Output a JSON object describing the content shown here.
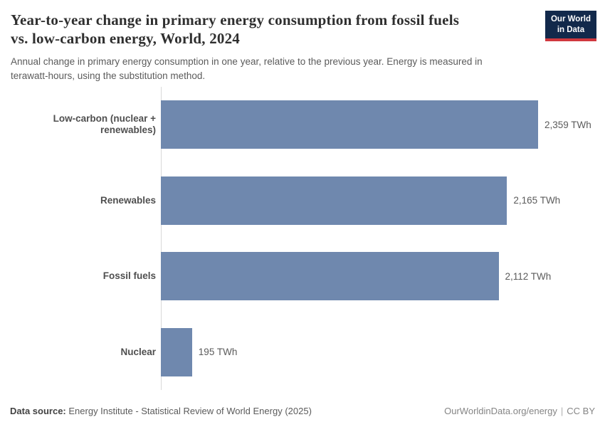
{
  "header": {
    "title": "Year-to-year change in primary energy consumption from fossil fuels\nvs. low-carbon energy, World, 2024",
    "subtitle": "Annual change in primary energy consumption in one year, relative to the previous year. Energy is measured in\nterawatt-hours, using the substitution method.",
    "logo_line1": "Our World",
    "logo_line2": "in Data"
  },
  "chart_data": {
    "type": "bar",
    "orientation": "horizontal",
    "title": "Year-to-year change in primary energy consumption from fossil fuels vs. low-carbon energy, World, 2024",
    "categories": [
      "Low-carbon (nuclear + renewables)",
      "Renewables",
      "Fossil fuels",
      "Nuclear"
    ],
    "values": [
      2359,
      2165,
      2112,
      195
    ],
    "value_labels": [
      "2,359 TWh",
      "2,165 TWh",
      "2,112 TWh",
      "195 TWh"
    ],
    "unit": "TWh",
    "xlim": [
      0,
      2359
    ],
    "grid": false,
    "axis_ticks_visible": false,
    "bar_color": "#6f88ae"
  },
  "colors": {
    "bar": "#6f88ae",
    "logo_navy": "#12294b",
    "logo_red": "#d0383e",
    "axis": "#d9d9d9"
  },
  "footer": {
    "datasource_label": "Data source:",
    "datasource_text": "Energy Institute - Statistical Review of World Energy (2025)",
    "url": "OurWorldinData.org/energy",
    "separator": "|",
    "license": "CC BY"
  }
}
